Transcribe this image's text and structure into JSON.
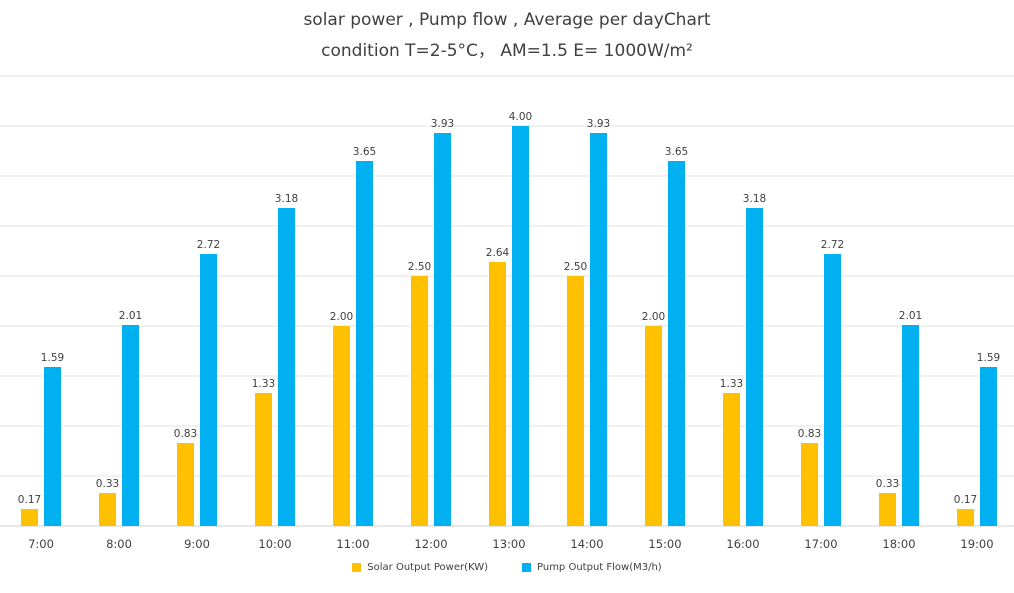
{
  "chart_data": {
    "type": "bar",
    "title": "solar power , Pump flow , Average per dayChart",
    "subtitle": "condition T=2-5°C，  AM=1.5  E= 1000W/m²",
    "categories": [
      "7:00",
      "8:00",
      "9:00",
      "10:00",
      "11:00",
      "12:00",
      "13:00",
      "14:00",
      "15:00",
      "16:00",
      "17:00",
      "18:00",
      "19:00"
    ],
    "series": [
      {
        "name": "Solar Output Power(KW)",
        "color": "#FFC000",
        "values": [
          0.17,
          0.33,
          0.83,
          1.33,
          2.0,
          2.5,
          2.64,
          2.5,
          2.0,
          1.33,
          0.83,
          0.33,
          0.17
        ],
        "labels": [
          "0.17",
          "0.33",
          "0.83",
          "1.33",
          "2.00",
          "2.50",
          "2.64",
          "2.50",
          "2.00",
          "1.33",
          "0.83",
          "0.33",
          "0.17"
        ]
      },
      {
        "name": "Pump Output Flow(M3/h)",
        "color": "#00B0F0",
        "values": [
          1.59,
          2.01,
          2.72,
          3.18,
          3.65,
          3.93,
          4.0,
          3.93,
          3.65,
          3.18,
          2.72,
          2.01,
          1.59
        ],
        "labels": [
          "1.59",
          "2.01",
          "2.72",
          "3.18",
          "3.65",
          "3.93",
          "4.00",
          "3.93",
          "3.65",
          "3.18",
          "2.72",
          "2.01",
          "1.59"
        ]
      }
    ],
    "xlabel": "",
    "ylabel": "",
    "ylim": [
      0,
      4.5
    ],
    "grid": true,
    "legend_position": "bottom"
  }
}
